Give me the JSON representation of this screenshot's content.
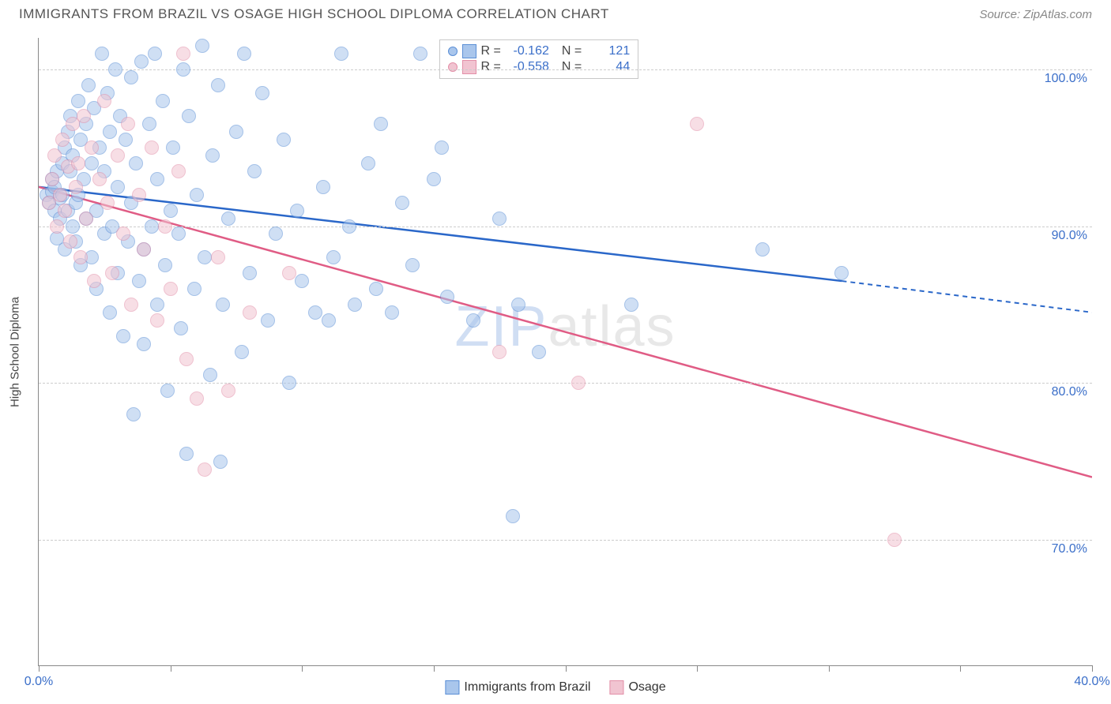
{
  "title": "IMMIGRANTS FROM BRAZIL VS OSAGE HIGH SCHOOL DIPLOMA CORRELATION CHART",
  "source": "Source: ZipAtlas.com",
  "watermark": {
    "prefix": "ZIP",
    "suffix": "atlas"
  },
  "chart": {
    "type": "scatter",
    "xlim": [
      0,
      40
    ],
    "ylim": [
      62,
      102
    ],
    "x_ticks": [
      0,
      5,
      10,
      15,
      20,
      25,
      30,
      35,
      40
    ],
    "x_tick_labels": {
      "0": "0.0%",
      "40": "40.0%"
    },
    "y_ticks": [
      70,
      80,
      90,
      100
    ],
    "y_tick_labels": {
      "70": "70.0%",
      "80": "80.0%",
      "90": "90.0%",
      "100": "100.0%"
    },
    "y_axis_title": "High School Diploma",
    "grid_color": "#cccccc",
    "background_color": "#ffffff",
    "label_color": "#3b6fc9",
    "axis_line_color": "#888888",
    "point_radius": 9,
    "point_opacity": 0.55,
    "series": [
      {
        "id": "brazil",
        "label": "Immigrants from Brazil",
        "fill_color": "#a9c6ec",
        "stroke_color": "#5b8fd6",
        "line_color": "#2a67c9",
        "R": "-0.162",
        "N": "121",
        "trend": {
          "x1": 0,
          "y1": 92.5,
          "x2": 30.5,
          "y2": 86.5,
          "dash_to_x": 40,
          "dash_to_y": 84.5
        },
        "points": [
          [
            0.3,
            92.0
          ],
          [
            0.4,
            91.5
          ],
          [
            0.5,
            92.2
          ],
          [
            0.5,
            93.0
          ],
          [
            0.6,
            91.0
          ],
          [
            0.6,
            92.5
          ],
          [
            0.7,
            93.5
          ],
          [
            0.7,
            89.2
          ],
          [
            0.8,
            90.5
          ],
          [
            0.8,
            91.8
          ],
          [
            0.9,
            92.0
          ],
          [
            0.9,
            94.0
          ],
          [
            1.0,
            88.5
          ],
          [
            1.0,
            95.0
          ],
          [
            1.1,
            91.0
          ],
          [
            1.1,
            96.0
          ],
          [
            1.2,
            97.0
          ],
          [
            1.2,
            93.5
          ],
          [
            1.3,
            90.0
          ],
          [
            1.3,
            94.5
          ],
          [
            1.4,
            89.0
          ],
          [
            1.4,
            91.5
          ],
          [
            1.5,
            98.0
          ],
          [
            1.5,
            92.0
          ],
          [
            1.6,
            95.5
          ],
          [
            1.6,
            87.5
          ],
          [
            1.7,
            93.0
          ],
          [
            1.8,
            96.5
          ],
          [
            1.8,
            90.5
          ],
          [
            1.9,
            99.0
          ],
          [
            2.0,
            88.0
          ],
          [
            2.0,
            94.0
          ],
          [
            2.1,
            97.5
          ],
          [
            2.2,
            86.0
          ],
          [
            2.2,
            91.0
          ],
          [
            2.3,
            95.0
          ],
          [
            2.4,
            101.0
          ],
          [
            2.5,
            89.5
          ],
          [
            2.5,
            93.5
          ],
          [
            2.6,
            98.5
          ],
          [
            2.7,
            84.5
          ],
          [
            2.7,
            96.0
          ],
          [
            2.8,
            90.0
          ],
          [
            2.9,
            100.0
          ],
          [
            3.0,
            87.0
          ],
          [
            3.0,
            92.5
          ],
          [
            3.1,
            97.0
          ],
          [
            3.2,
            83.0
          ],
          [
            3.3,
            95.5
          ],
          [
            3.4,
            89.0
          ],
          [
            3.5,
            99.5
          ],
          [
            3.5,
            91.5
          ],
          [
            3.6,
            78.0
          ],
          [
            3.7,
            94.0
          ],
          [
            3.8,
            86.5
          ],
          [
            3.9,
            100.5
          ],
          [
            4.0,
            88.5
          ],
          [
            4.0,
            82.5
          ],
          [
            4.2,
            96.5
          ],
          [
            4.3,
            90.0
          ],
          [
            4.4,
            101.0
          ],
          [
            4.5,
            85.0
          ],
          [
            4.5,
            93.0
          ],
          [
            4.7,
            98.0
          ],
          [
            4.8,
            87.5
          ],
          [
            4.9,
            79.5
          ],
          [
            5.0,
            91.0
          ],
          [
            5.1,
            95.0
          ],
          [
            5.3,
            89.5
          ],
          [
            5.4,
            83.5
          ],
          [
            5.5,
            100.0
          ],
          [
            5.6,
            75.5
          ],
          [
            5.7,
            97.0
          ],
          [
            5.9,
            86.0
          ],
          [
            6.0,
            92.0
          ],
          [
            6.2,
            101.5
          ],
          [
            6.3,
            88.0
          ],
          [
            6.5,
            80.5
          ],
          [
            6.6,
            94.5
          ],
          [
            6.8,
            99.0
          ],
          [
            6.9,
            75.0
          ],
          [
            7.0,
            85.0
          ],
          [
            7.2,
            90.5
          ],
          [
            7.5,
            96.0
          ],
          [
            7.7,
            82.0
          ],
          [
            7.8,
            101.0
          ],
          [
            8.0,
            87.0
          ],
          [
            8.2,
            93.5
          ],
          [
            8.5,
            98.5
          ],
          [
            8.7,
            84.0
          ],
          [
            9.0,
            89.5
          ],
          [
            9.3,
            95.5
          ],
          [
            9.5,
            80.0
          ],
          [
            9.8,
            91.0
          ],
          [
            10.0,
            86.5
          ],
          [
            10.5,
            84.5
          ],
          [
            10.8,
            92.5
          ],
          [
            11.0,
            84.0
          ],
          [
            11.2,
            88.0
          ],
          [
            11.5,
            101.0
          ],
          [
            11.8,
            90.0
          ],
          [
            12.0,
            85.0
          ],
          [
            12.5,
            94.0
          ],
          [
            12.8,
            86.0
          ],
          [
            13.0,
            96.5
          ],
          [
            13.4,
            84.5
          ],
          [
            13.8,
            91.5
          ],
          [
            14.2,
            87.5
          ],
          [
            14.5,
            101.0
          ],
          [
            15.0,
            93.0
          ],
          [
            15.3,
            95.0
          ],
          [
            15.5,
            85.5
          ],
          [
            16.5,
            84.0
          ],
          [
            17.5,
            90.5
          ],
          [
            18.0,
            71.5
          ],
          [
            18.2,
            85.0
          ],
          [
            19.0,
            82.0
          ],
          [
            22.5,
            85.0
          ],
          [
            27.5,
            88.5
          ],
          [
            30.5,
            87.0
          ]
        ]
      },
      {
        "id": "osage",
        "label": "Osage",
        "fill_color": "#f1c4d1",
        "stroke_color": "#e38fa8",
        "line_color": "#e05c85",
        "R": "-0.558",
        "N": "44",
        "trend": {
          "x1": 0,
          "y1": 92.5,
          "x2": 40,
          "y2": 74.0
        },
        "points": [
          [
            0.4,
            91.5
          ],
          [
            0.5,
            93.0
          ],
          [
            0.6,
            94.5
          ],
          [
            0.7,
            90.0
          ],
          [
            0.8,
            92.0
          ],
          [
            0.9,
            95.5
          ],
          [
            1.0,
            91.0
          ],
          [
            1.1,
            93.8
          ],
          [
            1.2,
            89.0
          ],
          [
            1.3,
            96.5
          ],
          [
            1.4,
            92.5
          ],
          [
            1.5,
            94.0
          ],
          [
            1.6,
            88.0
          ],
          [
            1.7,
            97.0
          ],
          [
            1.8,
            90.5
          ],
          [
            2.0,
            95.0
          ],
          [
            2.1,
            86.5
          ],
          [
            2.3,
            93.0
          ],
          [
            2.5,
            98.0
          ],
          [
            2.6,
            91.5
          ],
          [
            2.8,
            87.0
          ],
          [
            3.0,
            94.5
          ],
          [
            3.2,
            89.5
          ],
          [
            3.4,
            96.5
          ],
          [
            3.5,
            85.0
          ],
          [
            3.8,
            92.0
          ],
          [
            4.0,
            88.5
          ],
          [
            4.3,
            95.0
          ],
          [
            4.5,
            84.0
          ],
          [
            4.8,
            90.0
          ],
          [
            5.0,
            86.0
          ],
          [
            5.3,
            93.5
          ],
          [
            5.6,
            81.5
          ],
          [
            5.5,
            101.0
          ],
          [
            6.0,
            79.0
          ],
          [
            6.3,
            74.5
          ],
          [
            6.8,
            88.0
          ],
          [
            7.2,
            79.5
          ],
          [
            8.0,
            84.5
          ],
          [
            9.5,
            87.0
          ],
          [
            17.5,
            82.0
          ],
          [
            20.5,
            80.0
          ],
          [
            25.0,
            96.5
          ],
          [
            32.5,
            70.0
          ]
        ]
      }
    ]
  },
  "legend_top": {
    "R_label": "R =",
    "N_label": "N ="
  },
  "legend_bottom": {
    "series": [
      "brazil",
      "osage"
    ]
  }
}
